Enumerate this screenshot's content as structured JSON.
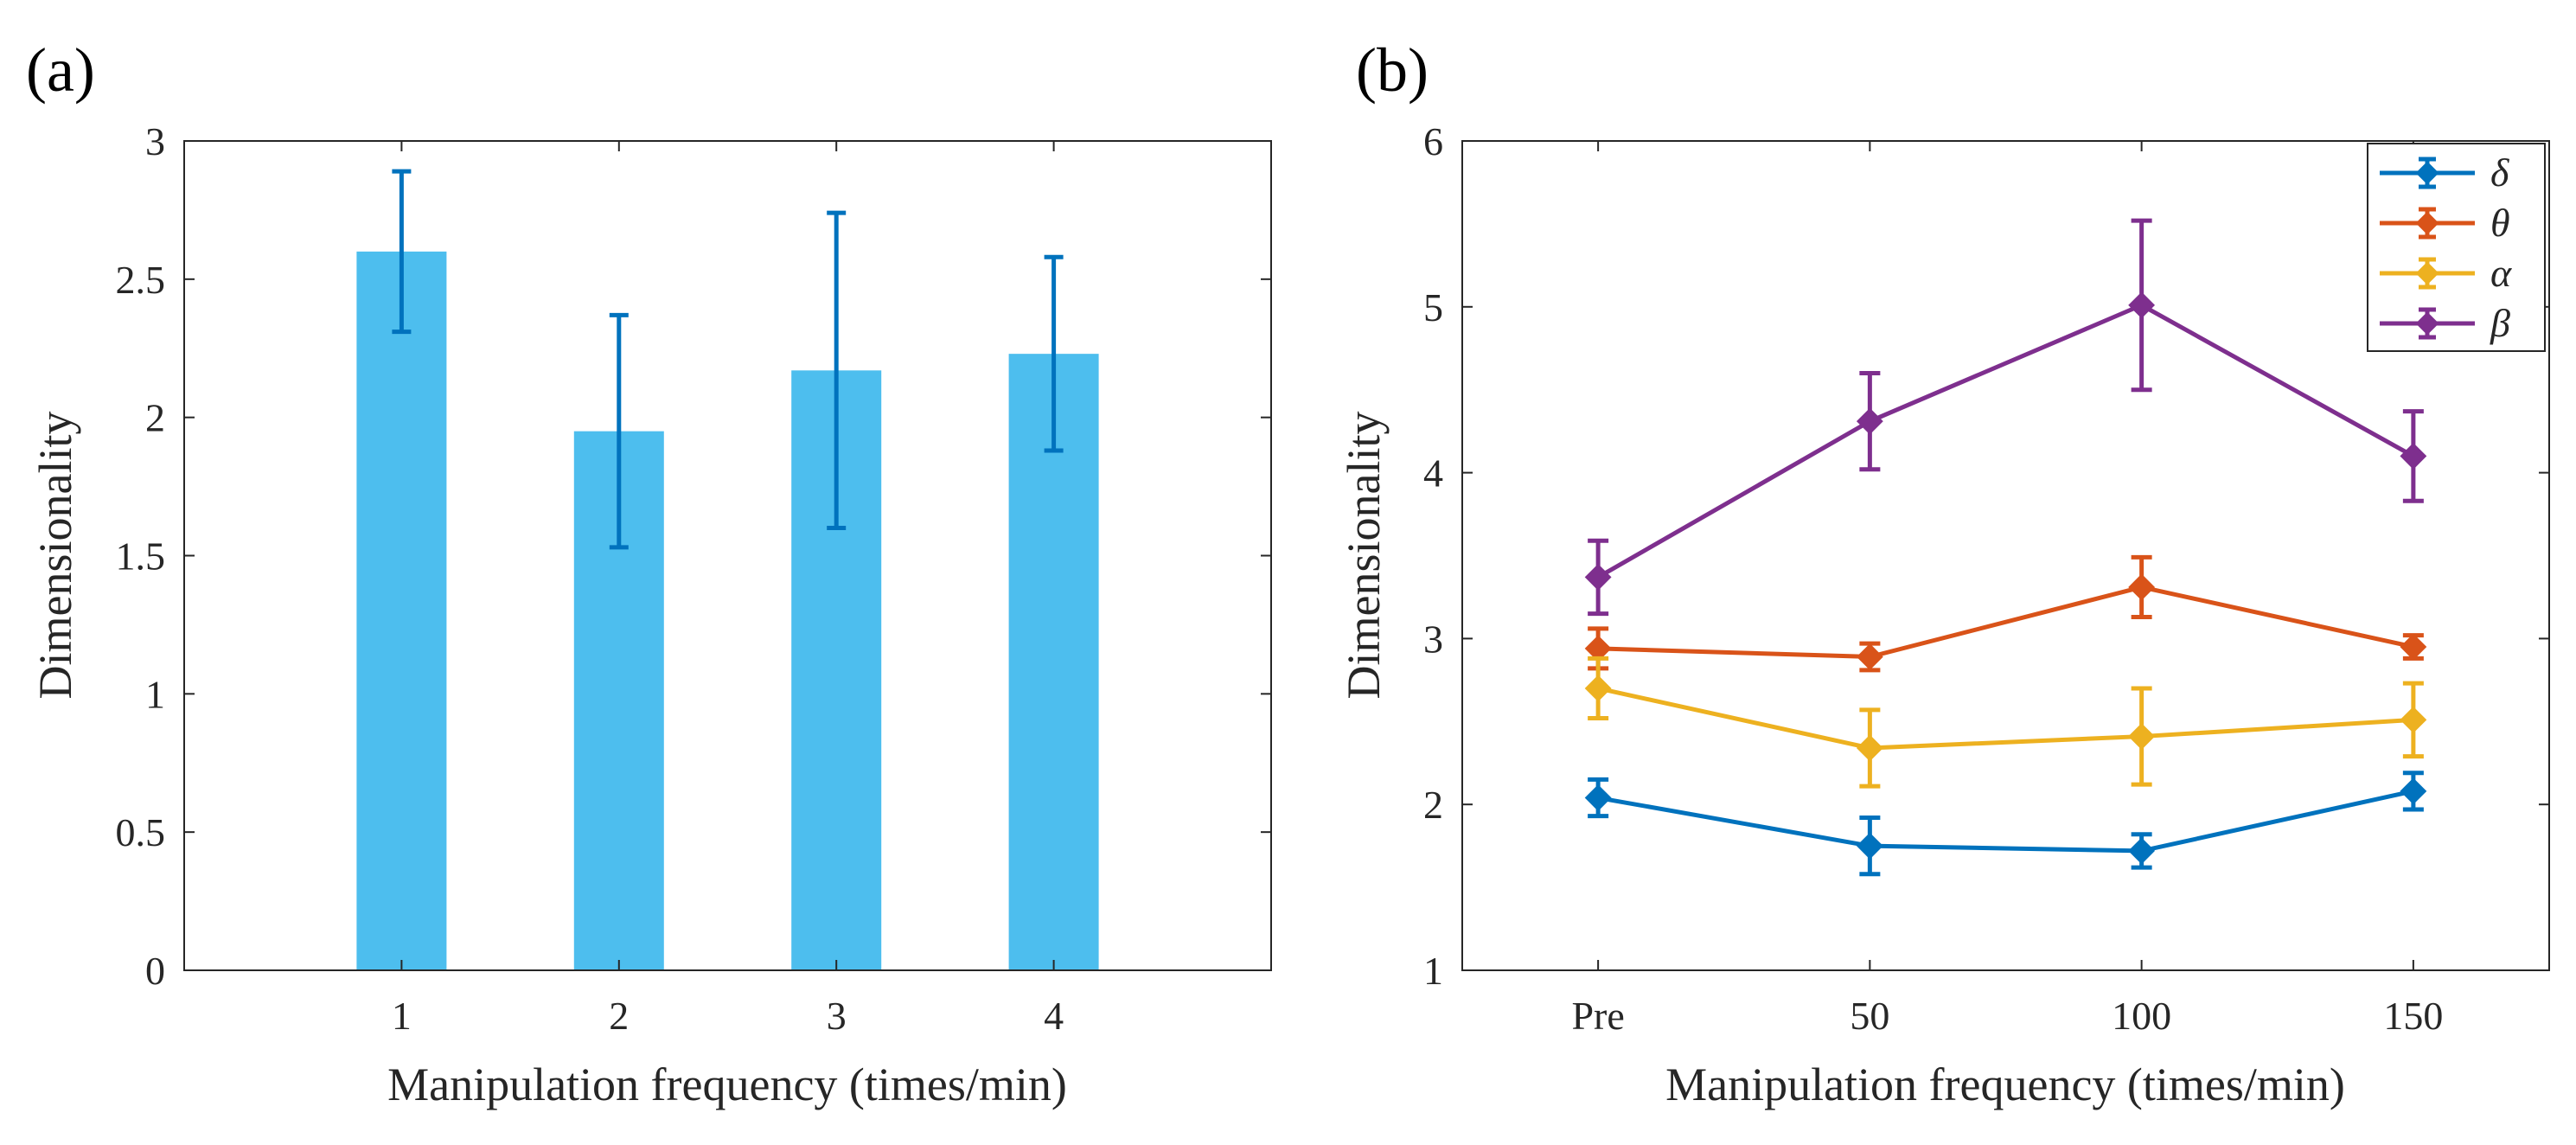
{
  "panel_labels": {
    "a": "(a)",
    "b": "(b)"
  },
  "colors": {
    "axis": "#262626",
    "bar_fill": "#4DBEEE",
    "bar_error": "#0072BD",
    "delta": "#0072BD",
    "theta": "#D95319",
    "alpha": "#EDB120",
    "beta": "#7E2F8E"
  },
  "chart_data": [
    {
      "id": "a",
      "type": "bar",
      "title": "",
      "xlabel": "Manipulation frequency (times/min)",
      "ylabel": "Dimensionality",
      "categories": [
        "1",
        "2",
        "3",
        "4"
      ],
      "x": [
        1,
        2,
        3,
        4
      ],
      "values": [
        2.6,
        1.95,
        2.17,
        2.23
      ],
      "errors": [
        0.29,
        0.42,
        0.57,
        0.35
      ],
      "xlim": [
        0,
        5
      ],
      "ylim": [
        0,
        3
      ],
      "yticks": [
        0,
        0.5,
        1,
        1.5,
        2,
        2.5,
        3
      ],
      "ytick_labels": [
        "0",
        "0.5",
        "1",
        "1.5",
        "2",
        "2.5",
        "3"
      ],
      "grid": false
    },
    {
      "id": "b",
      "type": "line",
      "title": "",
      "xlabel": "Manipulation frequency (times/min)",
      "ylabel": "Dimensionality",
      "categories": [
        "Pre",
        "50",
        "100",
        "150"
      ],
      "x": [
        1,
        2,
        3,
        4
      ],
      "xlim": [
        0.5,
        4.5
      ],
      "ylim": [
        1,
        6
      ],
      "yticks": [
        1,
        2,
        3,
        4,
        5,
        6
      ],
      "ytick_labels": [
        "1",
        "2",
        "3",
        "4",
        "5",
        "6"
      ],
      "grid": false,
      "legend_position": "top-right",
      "series": [
        {
          "name": "δ",
          "key": "delta",
          "values": [
            2.04,
            1.75,
            1.72,
            2.08
          ],
          "errors": [
            0.11,
            0.17,
            0.1,
            0.11
          ]
        },
        {
          "name": "θ",
          "key": "theta",
          "values": [
            2.94,
            2.89,
            3.31,
            2.95
          ],
          "errors": [
            0.12,
            0.08,
            0.18,
            0.07
          ]
        },
        {
          "name": "α",
          "key": "alpha",
          "values": [
            2.7,
            2.34,
            2.41,
            2.51
          ],
          "errors": [
            0.18,
            0.23,
            0.29,
            0.22
          ]
        },
        {
          "name": "β",
          "key": "beta",
          "values": [
            3.37,
            4.31,
            5.01,
            4.1
          ],
          "errors": [
            0.22,
            0.29,
            0.51,
            0.27
          ]
        }
      ]
    }
  ]
}
